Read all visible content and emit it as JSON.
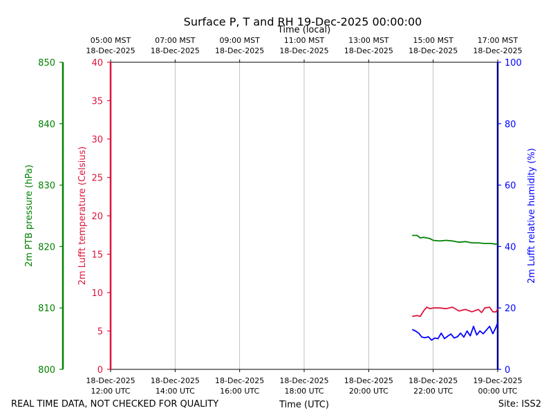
{
  "chart_data": {
    "type": "line",
    "title": "Surface P, T and RH 19-Dec-2025 00:00:00",
    "top_xlabel": "Time (local)",
    "xlabel": "Time (UTC)",
    "xlim_utc_hours": [
      12,
      24
    ],
    "x_tick_hours": [
      12,
      14,
      16,
      18,
      20,
      22,
      24
    ],
    "x_ticks_bottom": [
      {
        "line1": "18-Dec-2025",
        "line2": "12:00 UTC"
      },
      {
        "line1": "18-Dec-2025",
        "line2": "14:00 UTC"
      },
      {
        "line1": "18-Dec-2025",
        "line2": "16:00 UTC"
      },
      {
        "line1": "18-Dec-2025",
        "line2": "18:00 UTC"
      },
      {
        "line1": "18-Dec-2025",
        "line2": "20:00 UTC"
      },
      {
        "line1": "18-Dec-2025",
        "line2": "22:00 UTC"
      },
      {
        "line1": "19-Dec-2025",
        "line2": "00:00 UTC"
      }
    ],
    "x_ticks_top": [
      {
        "line1": "05:00 MST",
        "line2": "18-Dec-2025"
      },
      {
        "line1": "07:00 MST",
        "line2": "18-Dec-2025"
      },
      {
        "line1": "09:00 MST",
        "line2": "18-Dec-2025"
      },
      {
        "line1": "11:00 MST",
        "line2": "18-Dec-2025"
      },
      {
        "line1": "13:00 MST",
        "line2": "18-Dec-2025"
      },
      {
        "line1": "15:00 MST",
        "line2": "18-Dec-2025"
      },
      {
        "line1": "17:00 MST",
        "line2": "18-Dec-2025"
      }
    ],
    "axes": {
      "pressure": {
        "label": "2m PTB pressure (hPa)",
        "color": "#008000",
        "range": [
          800,
          850
        ],
        "ticks": [
          "800",
          "810",
          "820",
          "830",
          "840",
          "850"
        ]
      },
      "temperature": {
        "label": "2m Lufft temperature (Celsius)",
        "color": "#dc143c",
        "range": [
          0,
          40
        ],
        "ticks": [
          "0",
          "5",
          "10",
          "15",
          "20",
          "25",
          "30",
          "35",
          "40"
        ]
      },
      "humidity": {
        "label": "2m Lufft relative humidity (%)",
        "color": "#0000ff",
        "range": [
          0,
          100
        ],
        "ticks": [
          "0",
          "20",
          "40",
          "60",
          "80",
          "100"
        ]
      }
    },
    "series": [
      {
        "name": "pressure",
        "axis": "pressure",
        "color": "#008000",
        "x": [
          21.35,
          21.5,
          21.6,
          21.7,
          21.8,
          21.9,
          22.0,
          22.2,
          22.4,
          22.6,
          22.8,
          23.0,
          23.2,
          23.4,
          23.6,
          23.8,
          23.9,
          24.0
        ],
        "y": [
          821.8,
          821.8,
          821.4,
          821.5,
          821.4,
          821.3,
          821.0,
          820.9,
          821.0,
          820.9,
          820.7,
          820.8,
          820.6,
          820.6,
          820.5,
          820.5,
          820.4,
          820.4
        ]
      },
      {
        "name": "temperature",
        "axis": "temperature",
        "color": "#dc143c",
        "x": [
          21.35,
          21.5,
          21.6,
          21.7,
          21.8,
          21.9,
          22.0,
          22.2,
          22.4,
          22.6,
          22.8,
          23.0,
          23.2,
          23.4,
          23.5,
          23.6,
          23.75,
          23.85,
          23.95,
          24.0
        ],
        "y": [
          6.9,
          7.0,
          6.9,
          7.6,
          8.1,
          7.9,
          8.0,
          8.0,
          7.9,
          8.1,
          7.6,
          7.8,
          7.5,
          7.8,
          7.4,
          8.0,
          8.1,
          7.5,
          7.5,
          7.9
        ]
      },
      {
        "name": "humidity",
        "axis": "humidity",
        "color": "#0000ff",
        "x": [
          21.35,
          21.45,
          21.55,
          21.65,
          21.75,
          21.85,
          21.95,
          22.05,
          22.15,
          22.25,
          22.35,
          22.45,
          22.55,
          22.65,
          22.75,
          22.85,
          22.95,
          23.05,
          23.15,
          23.25,
          23.35,
          23.45,
          23.55,
          23.65,
          23.75,
          23.85,
          23.95,
          24.0
        ],
        "y": [
          13.0,
          12.5,
          11.8,
          10.5,
          10.3,
          10.6,
          9.5,
          10.2,
          10.0,
          11.8,
          10.0,
          10.8,
          11.5,
          10.2,
          10.6,
          11.8,
          10.5,
          12.5,
          10.9,
          14.0,
          11.2,
          12.5,
          11.6,
          12.8,
          14.0,
          11.6,
          13.8,
          15.2
        ]
      }
    ]
  },
  "footer": {
    "left": "REAL TIME DATA, NOT CHECKED FOR QUALITY",
    "right": "Site: ISS2"
  }
}
